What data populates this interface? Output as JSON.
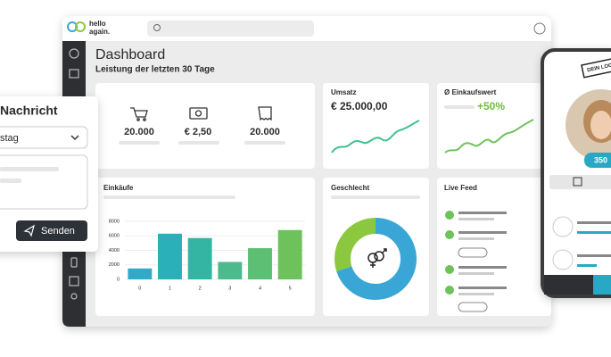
{
  "app": {
    "logo": [
      "hello",
      "again."
    ]
  },
  "header": {
    "title": "Dashboard",
    "subtitle": "Leistung der letzten 30 Tage"
  },
  "kpis": [
    "20.000",
    "€ 2,50",
    "20.000"
  ],
  "revenue": {
    "title": "Umsatz",
    "value": "€ 25.000,00"
  },
  "avg_basket": {
    "title": "Ø Einkaufswert",
    "change": "+50%"
  },
  "live_feed": {
    "title": "Live Feed"
  },
  "message_popup": {
    "title": "Nachricht",
    "select": "stag",
    "button": "Senden"
  },
  "phone": {
    "logo": "DEIN LOG",
    "points": "350"
  },
  "chart_data": [
    {
      "type": "bar",
      "title": "Einkäufe",
      "categories": [
        "0",
        "1",
        "2",
        "3",
        "4",
        "5"
      ],
      "values": [
        1500,
        6300,
        5700,
        2400,
        4300,
        6800
      ],
      "colors": [
        "#33a9c9",
        "#2ab0b8",
        "#34b5a4",
        "#4cba8c",
        "#5cbf73",
        "#6dc25b"
      ],
      "ylim": [
        0,
        8000
      ],
      "yticks": [
        0,
        2000,
        4000,
        6000,
        8000
      ],
      "grid": true
    },
    {
      "type": "donut",
      "title": "Geschlecht",
      "values": [
        70,
        30
      ],
      "colors": [
        "#3aa6d6",
        "#8cc83f"
      ]
    }
  ]
}
